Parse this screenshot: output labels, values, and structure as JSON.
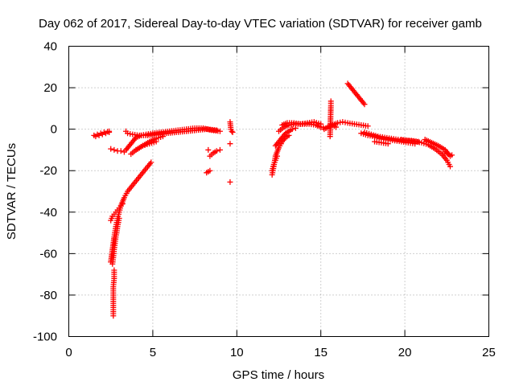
{
  "chart_data": {
    "type": "scatter",
    "title": "Day 062 of 2017, Sidereal Day-to-day VTEC variation (SDTVAR) for receiver gamb",
    "xlabel": "GPS time / hours",
    "ylabel": "SDTVAR / TECUs",
    "xlim": [
      0,
      25
    ],
    "ylim": [
      -100,
      40
    ],
    "xticks": [
      0,
      5,
      10,
      15,
      20,
      25
    ],
    "yticks": [
      -100,
      -80,
      -60,
      -40,
      -20,
      0,
      20,
      40
    ],
    "grid": true,
    "marker": "+",
    "series": [
      {
        "name": "SDTVAR",
        "color": "#ff0000",
        "segments": [
          {
            "x": [
              1.5,
              1.7,
              1.9,
              2.1,
              2.3,
              2.4
            ],
            "y": [
              -3,
              -2.5,
              -2,
              -1.5,
              -1.2,
              -1
            ]
          },
          {
            "x": [
              1.6,
              1.8,
              2.0,
              2.2,
              2.4
            ],
            "y": [
              -3.5,
              -3,
              -2.5,
              -2,
              -1.5
            ]
          },
          {
            "x": [
              2.5,
              2.7,
              2.9,
              3.1,
              3.3
            ],
            "y": [
              -9.5,
              -10,
              -10.5,
              -10.5,
              -11
            ]
          },
          {
            "x": [
              3.4,
              3.6,
              3.8,
              4.0,
              4.3,
              4.6,
              5.0,
              5.5,
              6.0,
              6.5,
              7.0,
              7.5,
              8.0,
              8.5,
              9.0
            ],
            "y": [
              -10,
              -8,
              -6,
              -4,
              -3,
              -2.5,
              -2,
              -1.5,
              -1,
              -0.5,
              0,
              0.5,
              0.5,
              -0.5,
              -1
            ]
          },
          {
            "x": [
              3.5,
              3.8,
              4.2,
              4.7,
              5.2,
              5.8,
              6.4,
              7.0,
              7.6,
              8.2,
              8.8
            ],
            "y": [
              -2,
              -2.5,
              -3,
              -3,
              -2.5,
              -2,
              -1.5,
              -1,
              -0.5,
              0,
              -0.5
            ]
          },
          {
            "x": [
              3.7,
              4.0,
              4.4,
              4.8,
              5.2
            ],
            "y": [
              -12,
              -10,
              -8,
              -7,
              -6
            ]
          },
          {
            "x": [
              4.0,
              4.4,
              4.8,
              5.2,
              5.6
            ],
            "y": [
              -10,
              -8,
              -6,
              -4.5,
              -3.5
            ]
          },
          {
            "x": [
              2.5,
              2.6,
              2.7,
              2.8,
              2.9,
              3.0,
              3.1,
              3.3,
              3.5,
              3.8,
              4.1,
              4.4,
              4.7,
              4.9
            ],
            "y": [
              -64,
              -58,
              -52,
              -47,
              -43,
              -40,
              -37,
              -33,
              -30,
              -27,
              -24,
              -21,
              -18,
              -16
            ]
          },
          {
            "x": [
              2.5,
              2.6,
              2.7,
              2.8,
              2.9,
              3.0,
              3.1,
              3.2
            ],
            "y": [
              -44,
              -42,
              -41,
              -40,
              -39,
              -38,
              -37,
              -36
            ]
          },
          {
            "x": [
              2.6,
              2.65,
              2.7,
              2.75,
              2.8,
              2.85,
              2.9,
              2.95,
              3.0
            ],
            "y": [
              -65,
              -62,
              -58,
              -55,
              -52,
              -50,
              -47,
              -45,
              -43
            ]
          },
          {
            "x": [
              2.65,
              2.65,
              2.65,
              2.65,
              2.65,
              2.7,
              2.7
            ],
            "y": [
              -90,
              -87,
              -84,
              -80,
              -76,
              -72,
              -68
            ]
          },
          {
            "x": [
              3.4
            ],
            "y": [
              -1
            ]
          },
          {
            "x": [
              8.4,
              8.6,
              8.8,
              9.0
            ],
            "y": [
              -13,
              -11.5,
              -10.5,
              -10
            ]
          },
          {
            "x": [
              8.2,
              8.4
            ],
            "y": [
              -21,
              -20
            ]
          },
          {
            "x": [
              8.3
            ],
            "y": [
              -10
            ]
          },
          {
            "x": [
              9.6,
              9.65,
              9.7,
              9.75
            ],
            "y": [
              3.5,
              0,
              -1,
              -1.5
            ]
          },
          {
            "x": [
              9.6
            ],
            "y": [
              -7
            ]
          },
          {
            "x": [
              9.6
            ],
            "y": [
              -25.5
            ]
          },
          {
            "x": [
              12.1,
              12.2,
              12.3,
              12.5,
              12.7,
              12.9,
              13.1
            ],
            "y": [
              -22,
              -18,
              -13,
              -9,
              -6,
              -4,
              -3
            ]
          },
          {
            "x": [
              12.1,
              12.2,
              12.3,
              12.4
            ],
            "y": [
              -20,
              -17,
              -15,
              -13
            ]
          },
          {
            "x": [
              12.3,
              12.5,
              12.7,
              12.9,
              13.1,
              13.3,
              13.5
            ],
            "y": [
              -8,
              -6,
              -4,
              -2,
              -1,
              0,
              0.5
            ]
          },
          {
            "x": [
              12.5,
              12.8,
              13.1,
              13.5,
              13.9,
              14.3,
              14.7,
              15.0,
              15.3
            ],
            "y": [
              -1,
              1,
              2,
              2.5,
              2.5,
              2.5,
              2,
              1,
              0.5
            ]
          },
          {
            "x": [
              12.7,
              13.0,
              13.4,
              13.8,
              14.2,
              14.6,
              15.0
            ],
            "y": [
              2,
              3,
              3,
              2.5,
              3,
              3.5,
              2.5
            ]
          },
          {
            "x": [
              15.2,
              15.4,
              15.7,
              16.0,
              16.3,
              16.6,
              17.0,
              17.4,
              17.8
            ],
            "y": [
              0,
              1,
              2,
              3,
              3.5,
              3,
              2.5,
              2,
              1.5
            ]
          },
          {
            "x": [
              15.6,
              15.6,
              15.55
            ],
            "y": [
              13.5,
              11.5,
              -3.5
            ]
          },
          {
            "x": [
              15.6,
              15.9
            ],
            "y": [
              2.5,
              1
            ]
          },
          {
            "x": [
              16.6,
              16.8,
              17.0,
              17.2,
              17.4,
              17.6
            ],
            "y": [
              22,
              20,
              18,
              16,
              14,
              12
            ]
          },
          {
            "x": [
              17.4,
              17.8,
              18.2,
              18.6,
              19.0,
              19.4,
              19.8,
              20.2,
              20.6
            ],
            "y": [
              -2,
              -3,
              -3.5,
              -4.5,
              -5,
              -5.5,
              -6,
              -6.5,
              -7
            ]
          },
          {
            "x": [
              17.6,
              18.0,
              18.4,
              18.8,
              19.2,
              19.6,
              20.0,
              20.4,
              20.8
            ],
            "y": [
              -1.5,
              -2.5,
              -3.5,
              -4,
              -4.5,
              -5,
              -5.5,
              -5.5,
              -6
            ]
          },
          {
            "x": [
              18.2,
              18.6,
              19.0
            ],
            "y": [
              -6,
              -6.5,
              -7
            ]
          },
          {
            "x": [
              19.8,
              20.2,
              20.6,
              21.0,
              21.4,
              21.8,
              22.2,
              22.5,
              22.7
            ],
            "y": [
              -5,
              -5.5,
              -6,
              -6.5,
              -7.5,
              -9.5,
              -12,
              -15,
              -18
            ]
          },
          {
            "x": [
              21.2,
              21.6,
              22.0,
              22.4,
              22.7
            ],
            "y": [
              -5,
              -6.5,
              -8,
              -10,
              -13
            ]
          },
          {
            "x": [
              22.4,
              22.6,
              22.8
            ],
            "y": [
              -11,
              -12,
              -12.5
            ]
          }
        ]
      }
    ]
  }
}
